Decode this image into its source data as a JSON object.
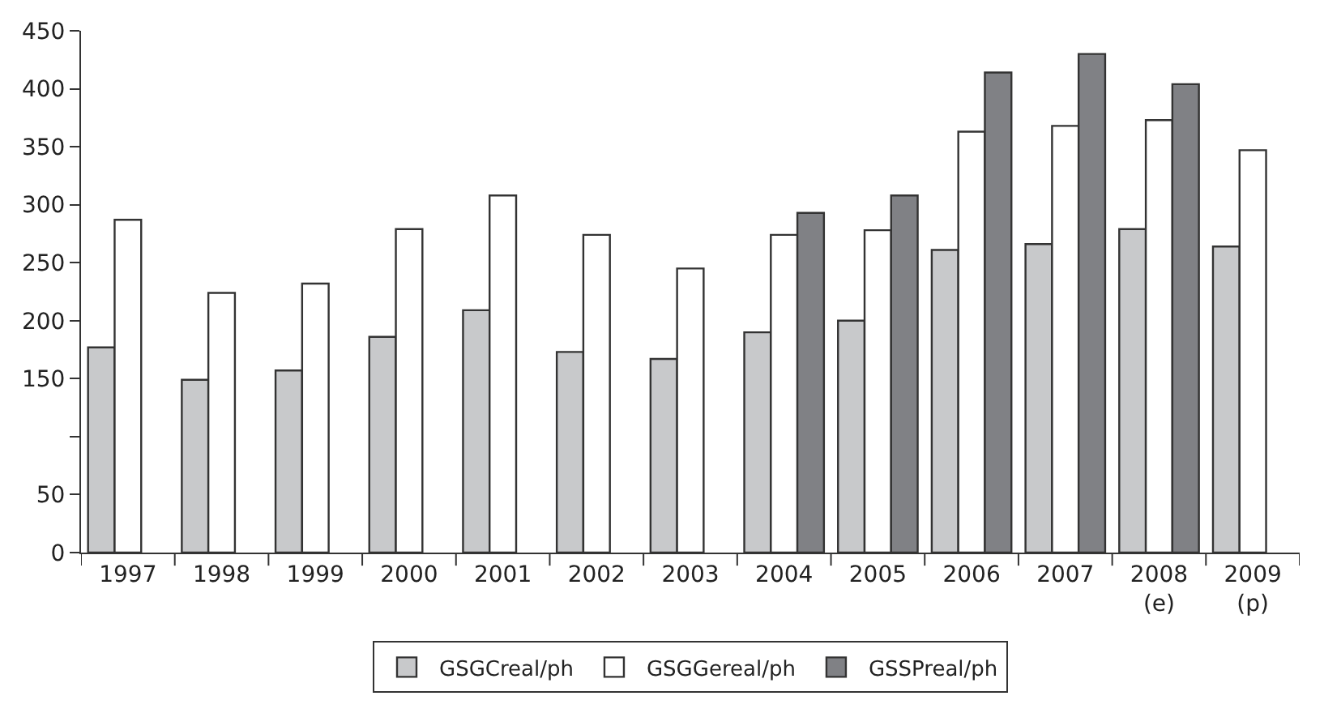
{
  "chart_data": {
    "type": "bar",
    "categories": [
      "1997",
      "1998",
      "1999",
      "2000",
      "2001",
      "2002",
      "2003",
      "2004",
      "2005",
      "2006",
      "2007",
      "2008\n(e)",
      "2009\n(p)"
    ],
    "series": [
      {
        "name": "GSGCreal/ph",
        "color": "#c8c9cb",
        "values": [
          177,
          149,
          157,
          186,
          209,
          173,
          167,
          190,
          200,
          261,
          266,
          279,
          264
        ]
      },
      {
        "name": "GSGGereal/ph",
        "color": "#ffffff",
        "values": [
          287,
          224,
          232,
          279,
          308,
          274,
          245,
          274,
          278,
          363,
          368,
          373,
          347
        ]
      },
      {
        "name": "GSSPreal/ph",
        "color": "#808185",
        "values": [
          null,
          null,
          null,
          null,
          null,
          null,
          null,
          293,
          308,
          414,
          430,
          404,
          null
        ]
      }
    ],
    "ylim": [
      0,
      450
    ],
    "yticks": [
      0,
      50,
      {
        "value": 100,
        "label": null
      },
      150,
      200,
      250,
      300,
      350,
      400,
      450
    ],
    "legend": "bottom"
  }
}
